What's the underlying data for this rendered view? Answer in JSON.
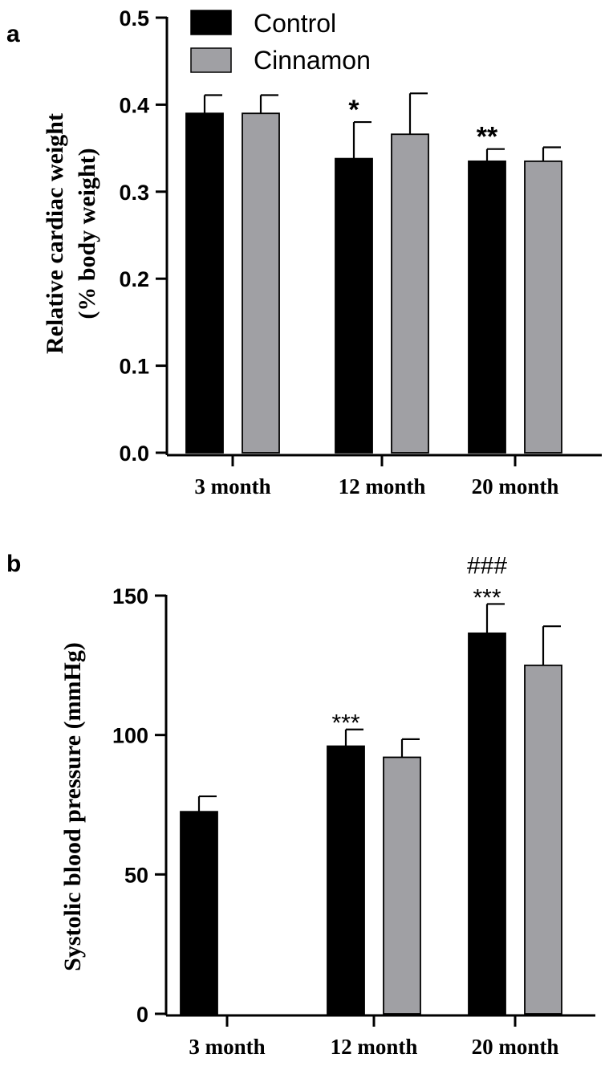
{
  "chart_data": [
    {
      "panel": "a",
      "type": "bar",
      "title": "",
      "xlabel": "",
      "ylabel_line1": "Relative cardiac weight",
      "ylabel_line2": "(% body weight)",
      "ylim": [
        0,
        0.5
      ],
      "yticks": [
        0.0,
        0.1,
        0.2,
        0.3,
        0.4,
        0.5
      ],
      "ytick_labels": [
        "0.0",
        "0.1",
        "0.2",
        "0.3",
        "0.4",
        "0.5"
      ],
      "categories": [
        "3 month",
        "12 month",
        "20 month"
      ],
      "legend": {
        "position": "top-left",
        "entries": [
          "Control",
          "Cinnamon"
        ]
      },
      "series": [
        {
          "name": "Control",
          "color": "#000000",
          "values": [
            0.39,
            0.338,
            0.335
          ],
          "errors": [
            0.021,
            0.042,
            0.014
          ]
        },
        {
          "name": "Cinnamon",
          "color": "#a0a0a4",
          "values": [
            0.39,
            0.366,
            0.335
          ],
          "errors": [
            0.021,
            0.047,
            0.016
          ]
        }
      ],
      "annotations": [
        {
          "series": 0,
          "category": 1,
          "lines": [
            "*"
          ]
        },
        {
          "series": 0,
          "category": 2,
          "lines": [
            "**"
          ]
        }
      ]
    },
    {
      "panel": "b",
      "type": "bar",
      "title": "",
      "xlabel": "",
      "ylabel_line1": "Systolic blood pressure (mmHg)",
      "ylim": [
        0,
        150
      ],
      "yticks": [
        0,
        50,
        100,
        150
      ],
      "ytick_labels": [
        "0",
        "50",
        "100",
        "150"
      ],
      "categories": [
        "3 month",
        "12 month",
        "20 month"
      ],
      "series": [
        {
          "name": "Control",
          "color": "#000000",
          "values": [
            72.5,
            96,
            136.5
          ],
          "errors": [
            5.5,
            6,
            10.5
          ]
        },
        {
          "name": "Cinnamon",
          "color": "#a0a0a4",
          "values": [
            null,
            92,
            125
          ],
          "errors": [
            null,
            6.5,
            14
          ]
        }
      ],
      "annotations": [
        {
          "series": 0,
          "category": 1,
          "lines": [
            "***"
          ]
        },
        {
          "series": 0,
          "category": 2,
          "lines": [
            "***",
            "###"
          ]
        }
      ]
    }
  ],
  "panel_labels": [
    "a",
    "b"
  ]
}
